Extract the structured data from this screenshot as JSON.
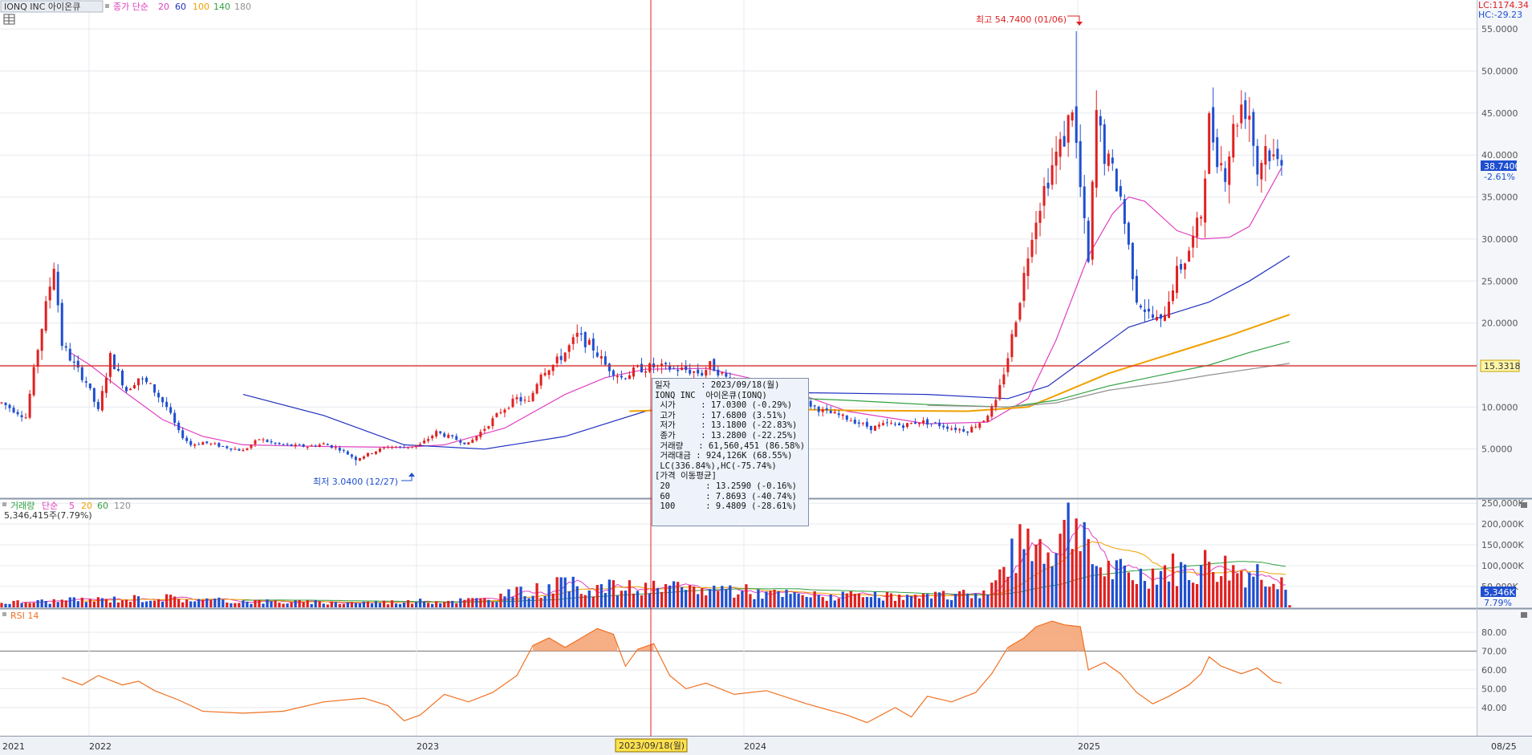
{
  "header": {
    "symbol": "IONQ INC  아이온큐",
    "ma_label": "종가 단순",
    "ma_periods": [
      "20",
      "60",
      "100",
      "140",
      "180"
    ],
    "lc": "LC:1174.34",
    "hc": "HC:-29.23",
    "current_price": "38.7400",
    "current_change": "-2.61%",
    "hline_value": "15.3318",
    "high_annotation": "최고 54.7400 (01/06)",
    "low_annotation": "최저 3.0400 (12/27)"
  },
  "volume_panel": {
    "label": "거래량",
    "ma_label": "단순",
    "ma_periods": [
      "5",
      "20",
      "60",
      "120"
    ],
    "current_volume": "5,346,415주(7.79%)",
    "badge_value": "5,346K",
    "badge_pct": "7.79%"
  },
  "rsi_panel": {
    "label": "RSI 14"
  },
  "x_axis": {
    "labels": [
      "2021",
      "2022",
      "2023",
      "2024",
      "2025",
      "08/25"
    ],
    "cursor_label": "2023/09/18(월)"
  },
  "colors": {
    "up": "#e02020",
    "down": "#1f4fd0",
    "ma20": "#e040c0",
    "ma60": "#2030c0",
    "ma100": "#f0a000",
    "ma140": "#30a040",
    "ma180": "#909090",
    "rsi": "#f07020",
    "hline": "#e02020"
  },
  "tooltip": {
    "lines": [
      "일자      : 2023/09/18(월)",
      "IONQ INC  아이온큐(IONQ)",
      " 시가     : 17.0300 (-0.29%)",
      " 고가     : 17.6800 (3.51%)",
      " 저가     : 13.1800 (-22.83%)",
      " 종가     : 13.2800 (-22.25%)",
      " 거래량   : 61,560,451 (86.58%)",
      " 거래대금 : 924,126K (68.55%)",
      " LC(336.84%),HC(-75.74%)",
      "[가격 이동평균]",
      " 20       : 13.2590 (-0.16%)",
      " 60       : 7.8693 (-40.74%)",
      " 100      : 9.4809 (-28.61%)"
    ]
  },
  "chart_data": {
    "type": "candlestick",
    "title": "IONQ INC 아이온큐 weekly",
    "price_axis": {
      "ticks": [
        "55.0000",
        "50.0000",
        "45.0000",
        "40.0000",
        "35.0000",
        "30.0000",
        "25.0000",
        "20.0000",
        "15.0000",
        "10.0000",
        "5.0000"
      ],
      "ylim": [
        0,
        57.5
      ]
    },
    "volume_axis": {
      "ticks": [
        "250,000K",
        "200,000K",
        "150,000K",
        "100,000K",
        "50,000K"
      ],
      "ylim": [
        0,
        260000
      ]
    },
    "rsi_axis": {
      "ticks": [
        "80.00",
        "70.00",
        "60.00",
        "50.00",
        "40.00"
      ],
      "ylim": [
        25,
        92
      ],
      "overbought": 70
    },
    "price_keypoints": [
      [
        0,
        10.5
      ],
      [
        6,
        8.8
      ],
      [
        9,
        17
      ],
      [
        11,
        22
      ],
      [
        13,
        27
      ],
      [
        15,
        17.5
      ],
      [
        18,
        15
      ],
      [
        21,
        13
      ],
      [
        24,
        9.5
      ],
      [
        27,
        16
      ],
      [
        31,
        12
      ],
      [
        34,
        13.5
      ],
      [
        37,
        12.5
      ],
      [
        41,
        10
      ],
      [
        44,
        7
      ],
      [
        47,
        5.5
      ],
      [
        50,
        5.8
      ],
      [
        56,
        5.2
      ],
      [
        60,
        4.8
      ],
      [
        64,
        6.2
      ],
      [
        68,
        5.6
      ],
      [
        72,
        5.4
      ],
      [
        76,
        5.3
      ],
      [
        80,
        5.6
      ],
      [
        84,
        5
      ],
      [
        88,
        3.8
      ],
      [
        92,
        4.6
      ],
      [
        96,
        5.3
      ],
      [
        100,
        5.2
      ],
      [
        104,
        5.5
      ],
      [
        108,
        7
      ],
      [
        112,
        6.3
      ],
      [
        116,
        5.6
      ],
      [
        120,
        7.5
      ],
      [
        124,
        9.5
      ],
      [
        128,
        11
      ],
      [
        131,
        10.5
      ],
      [
        134,
        14.2
      ],
      [
        137,
        15
      ],
      [
        140,
        16.5
      ],
      [
        143,
        18.5
      ],
      [
        147,
        17
      ],
      [
        150,
        15
      ],
      [
        154,
        13.5
      ],
      [
        158,
        14.5
      ],
      [
        162,
        14.8
      ],
      [
        166,
        14.6
      ],
      [
        170,
        14.4
      ],
      [
        174,
        14
      ],
      [
        176,
        15
      ],
      [
        180,
        13.5
      ],
      [
        184,
        12.5
      ],
      [
        188,
        11.5
      ],
      [
        192,
        11
      ],
      [
        196,
        10
      ],
      [
        200,
        10.5
      ],
      [
        204,
        9.5
      ],
      [
        208,
        9
      ],
      [
        212,
        8.3
      ],
      [
        216,
        7.5
      ],
      [
        220,
        8
      ],
      [
        224,
        7.8
      ],
      [
        228,
        8.3
      ],
      [
        232,
        8
      ],
      [
        236,
        7.5
      ],
      [
        240,
        7.2
      ],
      [
        244,
        8.5
      ],
      [
        247,
        10.5
      ],
      [
        250,
        16
      ],
      [
        253,
        23
      ],
      [
        256,
        31
      ],
      [
        259,
        36
      ],
      [
        262,
        40
      ],
      [
        264,
        42
      ],
      [
        266,
        46
      ],
      [
        268,
        36
      ],
      [
        270,
        27
      ],
      [
        272,
        45
      ],
      [
        274,
        40
      ],
      [
        276,
        38
      ],
      [
        278,
        35
      ],
      [
        280,
        29
      ],
      [
        282,
        23
      ],
      [
        285,
        21
      ],
      [
        288,
        20
      ],
      [
        290,
        23
      ],
      [
        292,
        26
      ],
      [
        294,
        27.5
      ],
      [
        296,
        30
      ],
      [
        298,
        33
      ],
      [
        300,
        44
      ],
      [
        302,
        40
      ],
      [
        304,
        38
      ],
      [
        306,
        43
      ],
      [
        308,
        46
      ],
      [
        310,
        45
      ],
      [
        312,
        38
      ],
      [
        314,
        41
      ],
      [
        316,
        39.5
      ],
      [
        318,
        38.74
      ]
    ],
    "max_high": 54.74,
    "min_low": 3.04,
    "last_close": 38.74,
    "horizontal_line": 15.3318,
    "selected_date": "2023/09/18",
    "moving_averages": [
      {
        "name": "20",
        "points": [
          [
            17,
            16.5
          ],
          [
            22,
            15
          ],
          [
            30,
            12
          ],
          [
            40,
            8.5
          ],
          [
            50,
            6.5
          ],
          [
            60,
            5.5
          ],
          [
            80,
            5.3
          ],
          [
            100,
            5.2
          ],
          [
            110,
            5.5
          ],
          [
            125,
            7.5
          ],
          [
            140,
            11.5
          ],
          [
            150,
            13.5
          ],
          [
            160,
            14.5
          ],
          [
            175,
            14.6
          ],
          [
            190,
            13
          ],
          [
            210,
            9.5
          ],
          [
            230,
            8
          ],
          [
            245,
            8.2
          ],
          [
            255,
            11
          ],
          [
            262,
            18
          ],
          [
            270,
            28
          ],
          [
            276,
            33
          ],
          [
            280,
            35
          ],
          [
            284,
            34.5
          ],
          [
            292,
            31
          ],
          [
            298,
            30
          ],
          [
            305,
            30.2
          ],
          [
            310,
            31.5
          ],
          [
            318,
            38.5
          ]
        ]
      },
      {
        "name": "60",
        "points": [
          [
            60,
            11.5
          ],
          [
            80,
            9
          ],
          [
            100,
            5.5
          ],
          [
            120,
            5
          ],
          [
            140,
            6.5
          ],
          [
            160,
            9.5
          ],
          [
            180,
            11.5
          ],
          [
            200,
            11.7
          ],
          [
            230,
            11.5
          ],
          [
            250,
            11
          ],
          [
            260,
            12.5
          ],
          [
            270,
            16
          ],
          [
            280,
            19.5
          ],
          [
            290,
            21
          ],
          [
            300,
            22.5
          ],
          [
            310,
            25
          ],
          [
            320,
            28
          ]
        ]
      },
      {
        "name": "100",
        "points": [
          [
            156,
            9.5
          ],
          [
            170,
            9.7
          ],
          [
            190,
            9.8
          ],
          [
            210,
            9.6
          ],
          [
            240,
            9.5
          ],
          [
            255,
            10
          ],
          [
            265,
            12
          ],
          [
            275,
            14
          ],
          [
            285,
            15.5
          ],
          [
            295,
            17
          ],
          [
            305,
            18.5
          ],
          [
            320,
            21
          ]
        ]
      },
      {
        "name": "140",
        "points": [
          [
            190,
            11.2
          ],
          [
            210,
            10.8
          ],
          [
            230,
            10.3
          ],
          [
            250,
            10
          ],
          [
            262,
            10.8
          ],
          [
            275,
            12.5
          ],
          [
            290,
            14
          ],
          [
            300,
            15
          ],
          [
            310,
            16.5
          ],
          [
            320,
            17.8
          ]
        ]
      },
      {
        "name": "180",
        "points": [
          [
            230,
            10.2
          ],
          [
            250,
            10
          ],
          [
            262,
            10.5
          ],
          [
            275,
            12
          ],
          [
            290,
            13
          ],
          [
            300,
            13.8
          ],
          [
            310,
            14.5
          ],
          [
            320,
            15.2
          ]
        ]
      }
    ],
    "volume_keypoints": [
      [
        0,
        12000
      ],
      [
        40,
        25000
      ],
      [
        50,
        18000
      ],
      [
        80,
        12000
      ],
      [
        100,
        14000
      ],
      [
        120,
        20000
      ],
      [
        130,
        40000
      ],
      [
        140,
        55000
      ],
      [
        150,
        50000
      ],
      [
        170,
        45000
      ],
      [
        180,
        48000
      ],
      [
        190,
        35000
      ],
      [
        200,
        30000
      ],
      [
        210,
        28000
      ],
      [
        230,
        25000
      ],
      [
        245,
        40000
      ],
      [
        250,
        110000
      ],
      [
        255,
        170000
      ],
      [
        260,
        160000
      ],
      [
        264,
        200000
      ],
      [
        268,
        245000
      ],
      [
        270,
        120000
      ],
      [
        276,
        90000
      ],
      [
        282,
        80000
      ],
      [
        290,
        100000
      ],
      [
        296,
        90000
      ],
      [
        300,
        115000
      ],
      [
        306,
        95000
      ],
      [
        312,
        90000
      ],
      [
        318,
        80000
      ],
      [
        320,
        5346
      ]
    ],
    "rsi_keypoints": [
      [
        15,
        56
      ],
      [
        20,
        52
      ],
      [
        24,
        57
      ],
      [
        30,
        52
      ],
      [
        34,
        54
      ],
      [
        38,
        49
      ],
      [
        44,
        44
      ],
      [
        50,
        38
      ],
      [
        60,
        37
      ],
      [
        70,
        38
      ],
      [
        80,
        43
      ],
      [
        90,
        45
      ],
      [
        96,
        41
      ],
      [
        100,
        33
      ],
      [
        104,
        36
      ],
      [
        110,
        47
      ],
      [
        116,
        43
      ],
      [
        122,
        48
      ],
      [
        128,
        57
      ],
      [
        132,
        73
      ],
      [
        136,
        77
      ],
      [
        140,
        72
      ],
      [
        144,
        77
      ],
      [
        148,
        82
      ],
      [
        152,
        79
      ],
      [
        155,
        62
      ],
      [
        158,
        71
      ],
      [
        162,
        74
      ],
      [
        166,
        57
      ],
      [
        170,
        50
      ],
      [
        175,
        53
      ],
      [
        182,
        47
      ],
      [
        190,
        49
      ],
      [
        200,
        42
      ],
      [
        210,
        36
      ],
      [
        215,
        32
      ],
      [
        222,
        40
      ],
      [
        226,
        35
      ],
      [
        230,
        46
      ],
      [
        236,
        43
      ],
      [
        242,
        48
      ],
      [
        246,
        58
      ],
      [
        250,
        72
      ],
      [
        254,
        77
      ],
      [
        257,
        83
      ],
      [
        261,
        86
      ],
      [
        264,
        84
      ],
      [
        268,
        83
      ],
      [
        270,
        60
      ],
      [
        274,
        64
      ],
      [
        278,
        58
      ],
      [
        282,
        48
      ],
      [
        286,
        42
      ],
      [
        290,
        46
      ],
      [
        295,
        52
      ],
      [
        298,
        58
      ],
      [
        300,
        67
      ],
      [
        303,
        62
      ],
      [
        308,
        58
      ],
      [
        312,
        61
      ],
      [
        316,
        54
      ],
      [
        318,
        53
      ]
    ]
  }
}
